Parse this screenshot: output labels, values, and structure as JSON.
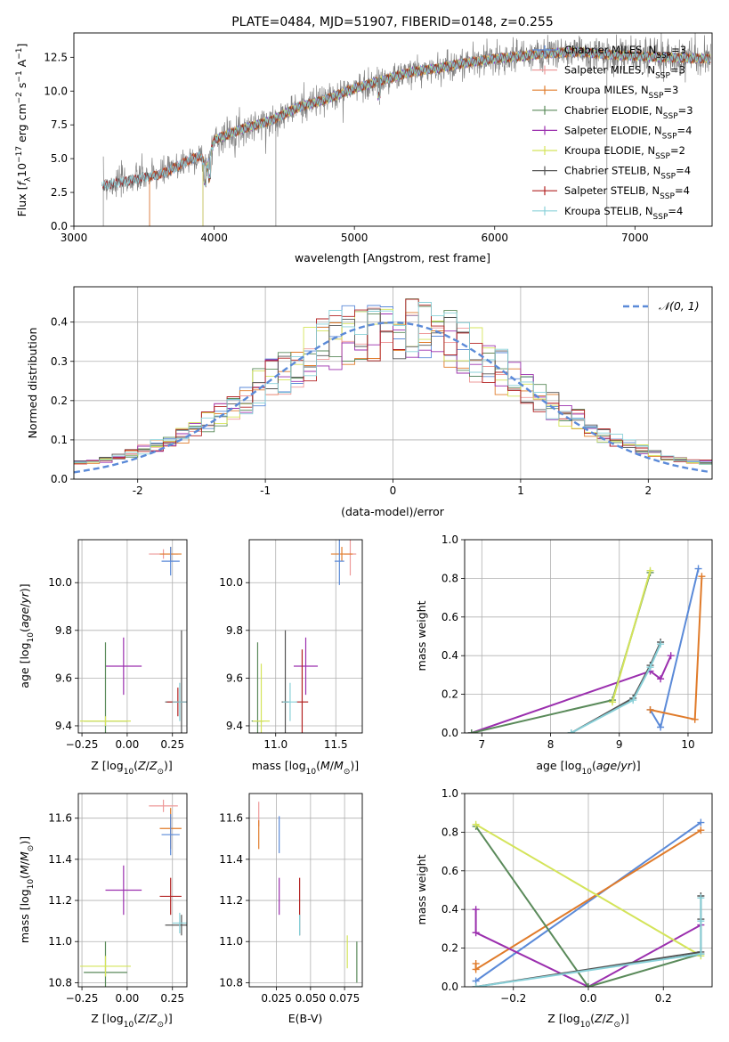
{
  "colors": {
    "chabrier_miles": "#5b8ad8",
    "salpeter_miles": "#ee9a9a",
    "kroupa_miles": "#e07b2a",
    "chabrier_elodie": "#5a8a5a",
    "salpeter_elodie": "#9b2fae",
    "kroupa_elodie": "#d4e45a",
    "chabrier_stelib": "#555555",
    "salpeter_stelib": "#b22222",
    "kroupa_stelib": "#88d0d8",
    "data_spectrum": "#808080",
    "gaussian": "#5b8ad8",
    "grid": "#b0b0b0"
  },
  "chart_data": [
    {
      "id": "spectrum",
      "type": "line",
      "title": "PLATE=0484, MJD=51907, FIBERID=0148, z=0.255",
      "xlabel": "wavelength [Angstrom, rest frame]",
      "ylabel": "Flux [fλ10⁻¹⁷ erg cm⁻² s⁻¹ A⁻¹]",
      "xlim": [
        3000,
        7550
      ],
      "ylim": [
        0,
        14.3
      ],
      "xticks": [
        3000,
        4000,
        5000,
        6000,
        7000
      ],
      "yticks": [
        0.0,
        2.5,
        5.0,
        7.5,
        10.0,
        12.5
      ],
      "legend_position": "upper right",
      "legend": [
        {
          "label": "Chabrier MILES, N_SSP=3",
          "color_key": "chabrier_miles"
        },
        {
          "label": "Salpeter MILES, N_SSP=3",
          "color_key": "salpeter_miles"
        },
        {
          "label": "Kroupa MILES, N_SSP=3",
          "color_key": "kroupa_miles"
        },
        {
          "label": "Chabrier ELODIE, N_SSP=3",
          "color_key": "chabrier_elodie"
        },
        {
          "label": "Salpeter ELODIE, N_SSP=4",
          "color_key": "salpeter_elodie"
        },
        {
          "label": "Kroupa ELODIE, N_SSP=2",
          "color_key": "kroupa_elodie"
        },
        {
          "label": "Chabrier STELIB, N_SSP=4",
          "color_key": "chabrier_stelib"
        },
        {
          "label": "Salpeter STELIB, N_SSP=4",
          "color_key": "salpeter_stelib"
        },
        {
          "label": "Kroupa STELIB, N_SSP=4",
          "color_key": "kroupa_stelib"
        }
      ],
      "continuum_points": [
        [
          3200,
          3.0
        ],
        [
          3400,
          3.4
        ],
        [
          3600,
          3.8
        ],
        [
          3700,
          4.2
        ],
        [
          3800,
          4.8
        ],
        [
          3900,
          5.2
        ],
        [
          3950,
          4.3
        ],
        [
          4000,
          6.4
        ],
        [
          4200,
          7.2
        ],
        [
          4400,
          7.8
        ],
        [
          4600,
          8.8
        ],
        [
          4800,
          9.4
        ],
        [
          5000,
          10.2
        ],
        [
          5200,
          10.8
        ],
        [
          5400,
          11.4
        ],
        [
          5600,
          11.7
        ],
        [
          5800,
          12.1
        ],
        [
          6000,
          12.4
        ],
        [
          6200,
          12.6
        ],
        [
          6400,
          12.8
        ],
        [
          6600,
          12.9
        ],
        [
          6800,
          12.7
        ],
        [
          7000,
          12.6
        ],
        [
          7200,
          12.5
        ],
        [
          7500,
          12.4
        ]
      ],
      "model_starts": {
        "miles": 3540,
        "elodie": 3920,
        "stelib": 3200
      }
    },
    {
      "id": "residuals",
      "type": "step",
      "xlabel": "(data-model)/error",
      "ylabel": "Normed distribution",
      "xlim": [
        -2.5,
        2.5
      ],
      "ylim": [
        0,
        0.49
      ],
      "xticks": [
        -2,
        -1,
        0,
        1,
        2
      ],
      "ytick_labels": [
        "0.0",
        "0.1",
        "0.2",
        "0.3",
        "0.4"
      ],
      "yticks": [
        0.0,
        0.1,
        0.2,
        0.3,
        0.4
      ],
      "bin_width": 0.1,
      "gaussian_label": "𝒩(0, 1)",
      "legend_position": "upper right"
    },
    {
      "id": "age_vs_z",
      "type": "errorbar",
      "xlabel": "Z [log₁₀(Z/Z⊙)]",
      "ylabel": "age  [log₁₀(age/yr)]",
      "xlim": [
        -0.27,
        0.33
      ],
      "ylim": [
        9.37,
        10.18
      ],
      "xticks": [
        -0.25,
        0.0,
        0.25
      ],
      "xtick_labels": [
        "−0.25",
        "0.00",
        "0.25"
      ],
      "yticks": [
        9.4,
        9.6,
        9.8,
        10.0
      ],
      "points": [
        {
          "color_key": "salpeter_miles",
          "x": 0.2,
          "y": 10.12,
          "xerr": 0.08,
          "yerr": 0.02
        },
        {
          "color_key": "kroupa_miles",
          "x": 0.24,
          "y": 10.12,
          "xerr": 0.06,
          "yerr": 0.03
        },
        {
          "color_key": "chabrier_miles",
          "x": 0.24,
          "y": 10.09,
          "xerr": 0.05,
          "yerr": 0.06
        },
        {
          "color_key": "salpeter_elodie",
          "x": -0.02,
          "y": 9.65,
          "xerr": 0.1,
          "yerr": 0.12
        },
        {
          "color_key": "chabrier_elodie",
          "x": -0.12,
          "y": 9.42,
          "xerr": 0.12,
          "yerr": 0.33
        },
        {
          "color_key": "kroupa_elodie",
          "x": -0.12,
          "y": 9.42,
          "xerr": 0.14,
          "yerr": 0.02
        },
        {
          "color_key": "chabrier_stelib",
          "x": 0.3,
          "y": 9.5,
          "xerr": 0.09,
          "yerr": 0.3
        },
        {
          "color_key": "salpeter_stelib",
          "x": 0.28,
          "y": 9.5,
          "xerr": 0.06,
          "yerr": 0.06
        },
        {
          "color_key": "kroupa_stelib",
          "x": 0.29,
          "y": 9.5,
          "xerr": 0.04,
          "yerr": 0.08
        }
      ]
    },
    {
      "id": "age_vs_mass",
      "type": "errorbar",
      "xlabel": "mass [log₁₀(M/M⊙)]",
      "ylabel": "",
      "xlim": [
        10.78,
        11.72
      ],
      "ylim": [
        9.37,
        10.18
      ],
      "xticks": [
        11.0,
        11.5
      ],
      "xtick_labels": [
        "11.0",
        "11.5"
      ],
      "yticks": [
        9.4,
        9.6,
        9.8,
        10.0
      ],
      "points": [
        {
          "color_key": "salpeter_miles",
          "x": 11.62,
          "y": 10.12,
          "xerr": 0.05,
          "yerr": 0.09
        },
        {
          "color_key": "kroupa_miles",
          "x": 11.55,
          "y": 10.12,
          "xerr": 0.09,
          "yerr": 0.03
        },
        {
          "color_key": "chabrier_miles",
          "x": 11.53,
          "y": 10.09,
          "xerr": 0.04,
          "yerr": 0.1
        },
        {
          "color_key": "salpeter_elodie",
          "x": 11.25,
          "y": 9.65,
          "xerr": 0.1,
          "yerr": 0.12
        },
        {
          "color_key": "chabrier_elodie",
          "x": 10.85,
          "y": 9.42,
          "xerr": 0.05,
          "yerr": 0.33
        },
        {
          "color_key": "kroupa_elodie",
          "x": 10.88,
          "y": 9.42,
          "xerr": 0.07,
          "yerr": 0.24
        },
        {
          "color_key": "chabrier_stelib",
          "x": 11.08,
          "y": 9.5,
          "xerr": 0.03,
          "yerr": 0.3
        },
        {
          "color_key": "salpeter_stelib",
          "x": 11.22,
          "y": 9.5,
          "xerr": 0.05,
          "yerr": 0.22
        },
        {
          "color_key": "kroupa_stelib",
          "x": 11.12,
          "y": 9.5,
          "xerr": 0.06,
          "yerr": 0.08
        }
      ]
    },
    {
      "id": "weight_vs_age",
      "type": "line",
      "xlabel": "age  [log₁₀(age/yr)]",
      "ylabel": "mass weight",
      "xlim": [
        6.75,
        10.35
      ],
      "ylim": [
        0,
        1.0
      ],
      "xticks": [
        7,
        8,
        9,
        10
      ],
      "yticks": [
        0.0,
        0.2,
        0.4,
        0.6,
        0.8,
        1.0
      ],
      "series": [
        {
          "color_key": "chabrier_miles",
          "x": [
            9.45,
            9.6,
            10.15
          ],
          "y": [
            0.12,
            0.03,
            0.85
          ]
        },
        {
          "color_key": "kroupa_miles",
          "x": [
            9.45,
            10.1,
            10.2
          ],
          "y": [
            0.12,
            0.07,
            0.81
          ]
        },
        {
          "color_key": "salpeter_elodie",
          "x": [
            6.85,
            9.45,
            9.6,
            9.75
          ],
          "y": [
            0.0,
            0.32,
            0.28,
            0.4
          ]
        },
        {
          "color_key": "chabrier_elodie",
          "x": [
            6.85,
            8.9,
            9.45
          ],
          "y": [
            0.0,
            0.17,
            0.83
          ]
        },
        {
          "color_key": "kroupa_elodie",
          "x": [
            8.9,
            9.45
          ],
          "y": [
            0.16,
            0.84
          ]
        },
        {
          "color_key": "chabrier_stelib",
          "x": [
            8.3,
            9.2,
            9.45,
            9.6
          ],
          "y": [
            0.0,
            0.18,
            0.35,
            0.47
          ]
        },
        {
          "color_key": "kroupa_stelib",
          "x": [
            8.3,
            9.2,
            9.45,
            9.6
          ],
          "y": [
            0.0,
            0.17,
            0.34,
            0.46
          ]
        }
      ]
    },
    {
      "id": "mass_vs_z",
      "type": "errorbar",
      "xlabel": "Z [log₁₀(Z/Z⊙)]",
      "ylabel": "mass [log₁₀(M/M⊙)]",
      "xlim": [
        -0.27,
        0.33
      ],
      "ylim": [
        10.78,
        11.72
      ],
      "xticks": [
        -0.25,
        0.0,
        0.25
      ],
      "xtick_labels": [
        "−0.25",
        "0.00",
        "0.25"
      ],
      "yticks": [
        10.8,
        11.0,
        11.2,
        11.4,
        11.6
      ],
      "ytick_labels": [
        "10.8",
        "11.0",
        "11.2",
        "11.4",
        "11.6"
      ],
      "points": [
        {
          "color_key": "salpeter_miles",
          "x": 0.2,
          "y": 11.66,
          "xerr": 0.08,
          "yerr": 0.03
        },
        {
          "color_key": "kroupa_miles",
          "x": 0.24,
          "y": 11.55,
          "xerr": 0.06,
          "yerr": 0.1
        },
        {
          "color_key": "chabrier_miles",
          "x": 0.24,
          "y": 11.52,
          "xerr": 0.05,
          "yerr": 0.1
        },
        {
          "color_key": "salpeter_elodie",
          "x": -0.02,
          "y": 11.25,
          "xerr": 0.1,
          "yerr": 0.12
        },
        {
          "color_key": "chabrier_elodie",
          "x": -0.12,
          "y": 10.85,
          "xerr": 0.12,
          "yerr": 0.15
        },
        {
          "color_key": "kroupa_elodie",
          "x": -0.12,
          "y": 10.88,
          "xerr": 0.14,
          "yerr": 0.05
        },
        {
          "color_key": "salpeter_stelib",
          "x": 0.24,
          "y": 11.22,
          "xerr": 0.06,
          "yerr": 0.09
        },
        {
          "color_key": "chabrier_stelib",
          "x": 0.3,
          "y": 11.08,
          "xerr": 0.09,
          "yerr": 0.05
        },
        {
          "color_key": "kroupa_stelib",
          "x": 0.29,
          "y": 11.09,
          "xerr": 0.04,
          "yerr": 0.05
        }
      ]
    },
    {
      "id": "mass_vs_ebv",
      "type": "errorbar",
      "xlabel": "E(B-V)",
      "ylabel": "",
      "xlim": [
        0.005,
        0.088
      ],
      "ylim": [
        10.78,
        11.72
      ],
      "xticks": [
        0.025,
        0.05,
        0.075
      ],
      "xtick_labels": [
        "0.025",
        "0.050",
        "0.075"
      ],
      "yticks": [
        10.8,
        11.0,
        11.2,
        11.4,
        11.6
      ],
      "ytick_labels": [
        "10.8",
        "11.0",
        "11.2",
        "11.4",
        "11.6"
      ],
      "points": [
        {
          "color_key": "salpeter_miles",
          "x": 0.012,
          "y": 11.62,
          "xerr": 0.0,
          "yerr": 0.06
        },
        {
          "color_key": "kroupa_miles",
          "x": 0.012,
          "y": 11.52,
          "xerr": 0.0,
          "yerr": 0.07
        },
        {
          "color_key": "chabrier_miles",
          "x": 0.027,
          "y": 11.52,
          "xerr": 0.0,
          "yerr": 0.09
        },
        {
          "color_key": "salpeter_elodie",
          "x": 0.027,
          "y": 11.22,
          "xerr": 0.0,
          "yerr": 0.09
        },
        {
          "color_key": "salpeter_stelib",
          "x": 0.042,
          "y": 11.22,
          "xerr": 0.0,
          "yerr": 0.09
        },
        {
          "color_key": "chabrier_stelib",
          "x": 0.042,
          "y": 11.08,
          "xerr": 0.0,
          "yerr": 0.05
        },
        {
          "color_key": "kroupa_stelib",
          "x": 0.042,
          "y": 11.08,
          "xerr": 0.0,
          "yerr": 0.05
        },
        {
          "color_key": "kroupa_elodie",
          "x": 0.077,
          "y": 10.95,
          "xerr": 0.0,
          "yerr": 0.08
        },
        {
          "color_key": "chabrier_elodie",
          "x": 0.084,
          "y": 10.9,
          "xerr": 0.0,
          "yerr": 0.1
        }
      ]
    },
    {
      "id": "weight_vs_z",
      "type": "line",
      "xlabel": "Z [log₁₀(Z/Z⊙)]",
      "ylabel": "mass weight",
      "xlim": [
        -0.33,
        0.33
      ],
      "ylim": [
        0,
        1.0
      ],
      "xticks": [
        -0.2,
        0.0,
        0.2
      ],
      "xtick_labels": [
        "−0.2",
        "0.0",
        "0.2"
      ],
      "yticks": [
        0.0,
        0.2,
        0.4,
        0.6,
        0.8,
        1.0
      ],
      "series": [
        {
          "color_key": "chabrier_miles",
          "x": [
            -0.3,
            0.3
          ],
          "y": [
            0.03,
            0.85
          ]
        },
        {
          "color_key": "kroupa_miles",
          "x": [
            -0.3,
            -0.3,
            0.3
          ],
          "y": [
            0.12,
            0.09,
            0.81
          ]
        },
        {
          "color_key": "salpeter_elodie",
          "x": [
            -0.3,
            -0.3,
            0.0,
            0.3
          ],
          "y": [
            0.4,
            0.28,
            0.0,
            0.32
          ]
        },
        {
          "color_key": "chabrier_elodie",
          "x": [
            -0.3,
            0.0,
            0.3
          ],
          "y": [
            0.83,
            0.0,
            0.17
          ]
        },
        {
          "color_key": "kroupa_elodie",
          "x": [
            -0.3,
            0.3
          ],
          "y": [
            0.84,
            0.16
          ]
        },
        {
          "color_key": "chabrier_stelib",
          "x": [
            -0.3,
            0.3,
            0.3,
            0.3
          ],
          "y": [
            0.0,
            0.18,
            0.47,
            0.35
          ]
        },
        {
          "color_key": "kroupa_stelib",
          "x": [
            -0.3,
            0.3,
            0.3,
            0.3
          ],
          "y": [
            0.0,
            0.17,
            0.46,
            0.34
          ]
        }
      ]
    }
  ]
}
